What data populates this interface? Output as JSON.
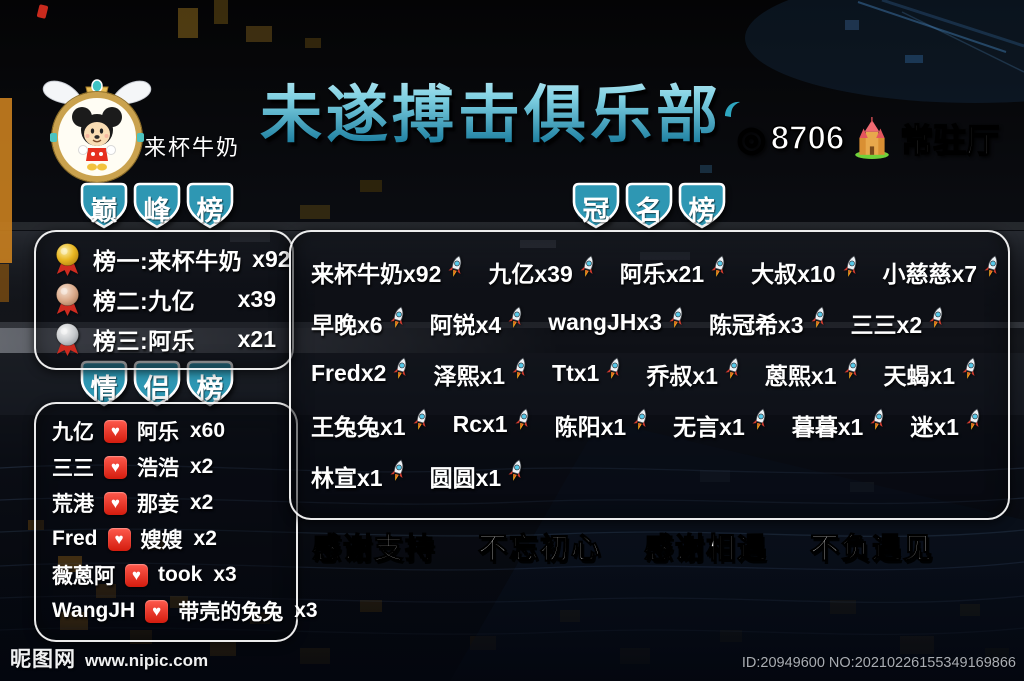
{
  "header": {
    "title": "未遂搏击俱乐部",
    "room_badge": {
      "prefix": "◎",
      "room_number": "8706",
      "icon": "castle-icon",
      "hall_label": "常驻厅"
    },
    "host": {
      "name": "来杯牛奶",
      "avatar": "mickey-angel-avatar"
    }
  },
  "peak_board": {
    "title_chars": [
      "巅",
      "峰",
      "榜"
    ],
    "rows": [
      {
        "medal": "gold",
        "label": "榜一:来杯牛奶",
        "count": "x92"
      },
      {
        "medal": "bronze",
        "label": "榜二:九亿",
        "count": "x39"
      },
      {
        "medal": "silver",
        "label": "榜三:阿乐",
        "count": "x21"
      }
    ]
  },
  "couple_board": {
    "title_chars": [
      "情",
      "侣",
      "榜"
    ],
    "rows": [
      {
        "left": "九亿",
        "right": "阿乐",
        "count": "x60"
      },
      {
        "left": "三三",
        "right": "浩浩",
        "count": "x2"
      },
      {
        "left": "荒港",
        "right": "那妾",
        "count": "x2"
      },
      {
        "left": "Fred",
        "right": "嫂嫂",
        "count": "x2"
      },
      {
        "left": "薇蒽阿",
        "right": "took",
        "count": "x3"
      },
      {
        "left": "WangJH",
        "right": "带壳的兔兔",
        "count": "x3"
      }
    ]
  },
  "naming_board": {
    "title_chars": [
      "冠",
      "名",
      "榜"
    ],
    "rows": [
      [
        "来杯牛奶x92",
        "九亿x39",
        "阿乐x21",
        "大叔x10",
        "小慈慈x7"
      ],
      [
        "早晚x6",
        "阿锐x4",
        "wangJHx3",
        "陈冠希x3",
        "三三x2"
      ],
      [
        "Fredx2",
        "泽熙x1",
        "Ttx1",
        "乔叔x1",
        "蒽熙x1",
        "天蝎x1"
      ],
      [
        "王兔兔x1",
        "Rcx1",
        "陈阳x1",
        "无言x1",
        "暮暮x1",
        "迷x1"
      ],
      [
        "林宣x1",
        "圆圆x1"
      ]
    ]
  },
  "slogans": [
    "感谢支持",
    "不忘初心",
    "感谢相遇",
    "不负遇见"
  ],
  "watermark": {
    "site": "昵图网",
    "url": "www.nipic.com",
    "id_text": "ID:20949600 NO:20210226155349169866"
  },
  "icons": {
    "entry_suffix": "rocket-icon",
    "couple_separator": "heart-icon",
    "room_badge": "castle-icon",
    "heart_glyph": "♥"
  },
  "colors": {
    "accent_teal": "#2f98b4",
    "title_gradient_top": "#d2f2fa",
    "title_gradient_bottom": "#1d7fa0",
    "heart_red": "#d31c0e",
    "medal_gold": "#e8b622",
    "medal_bronze": "#d9a888",
    "medal_silver": "#c6c9cc",
    "panel_border": "#ffffff"
  }
}
